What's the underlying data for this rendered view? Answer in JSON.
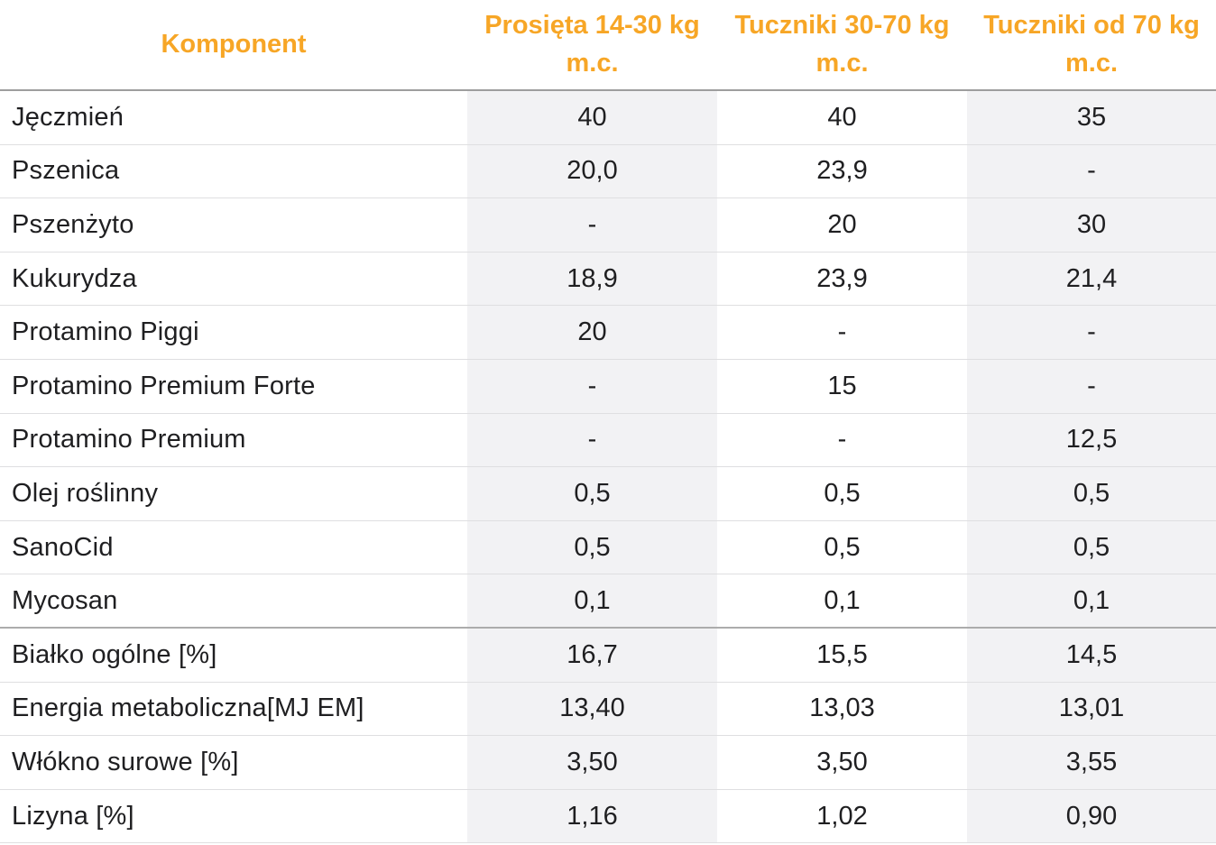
{
  "colors": {
    "header_text": "#f7a626",
    "body_text": "#1f1f21",
    "shaded_column_bg": "#f2f2f4",
    "header_divider": "#9e9e9e",
    "section_divider": "#acacac",
    "row_divider": "#dfdfe1"
  },
  "table": {
    "header": {
      "component_label": "Komponent",
      "group_columns": [
        "Prosięta 14-30 kg m.c.",
        "Tuczniki 30-70 kg m.c.",
        "Tuczniki od 70 kg m.c."
      ]
    },
    "rows": [
      {
        "name": "Jęczmień",
        "values": [
          "40",
          "40",
          "35"
        ],
        "section": "components"
      },
      {
        "name": "Pszenica",
        "values": [
          "20,0",
          "23,9",
          "-"
        ],
        "section": "components"
      },
      {
        "name": "Pszenżyto",
        "values": [
          "-",
          "20",
          "30"
        ],
        "section": "components"
      },
      {
        "name": "Kukurydza",
        "values": [
          "18,9",
          "23,9",
          "21,4"
        ],
        "section": "components"
      },
      {
        "name": "Protamino Piggi",
        "values": [
          "20",
          "-",
          "-"
        ],
        "section": "components"
      },
      {
        "name": "Protamino Premium Forte",
        "values": [
          "-",
          "15",
          "-"
        ],
        "section": "components"
      },
      {
        "name": "Protamino Premium",
        "values": [
          "-",
          "-",
          "12,5"
        ],
        "section": "components"
      },
      {
        "name": "Olej roślinny",
        "values": [
          "0,5",
          "0,5",
          "0,5"
        ],
        "section": "components"
      },
      {
        "name": "SanoCid",
        "values": [
          "0,5",
          "0,5",
          "0,5"
        ],
        "section": "components"
      },
      {
        "name": "Mycosan",
        "values": [
          "0,1",
          "0,1",
          "0,1"
        ],
        "section": "components",
        "section_end": true
      },
      {
        "name": "Białko ogólne [%]",
        "values": [
          "16,7",
          "15,5",
          "14,5"
        ],
        "section": "analysis"
      },
      {
        "name": "Energia metaboliczna[MJ EM]",
        "values": [
          "13,40",
          "13,03",
          "13,01"
        ],
        "section": "analysis"
      },
      {
        "name": "Włókno surowe [%]",
        "values": [
          "3,50",
          "3,50",
          "3,55"
        ],
        "section": "analysis"
      },
      {
        "name": "Lizyna [%]",
        "values": [
          "1,16",
          "1,02",
          "0,90"
        ],
        "section": "analysis"
      }
    ]
  }
}
